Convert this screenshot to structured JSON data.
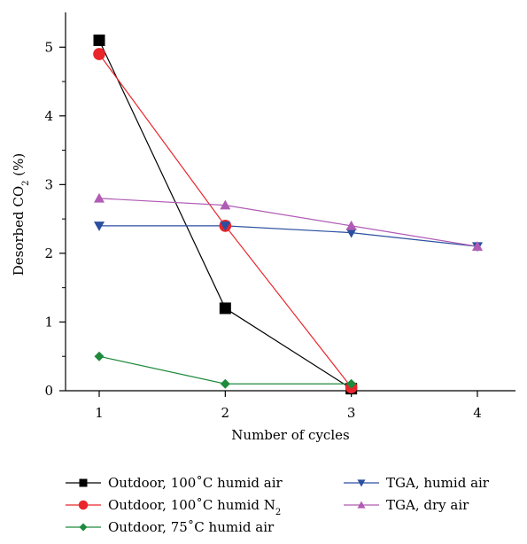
{
  "chart_data": {
    "type": "line",
    "xlabel": "Number of cycles",
    "ylabel": "Desorbed CO₂ (%)",
    "ylabel_main": "Desorbed CO",
    "ylabel_sub": "2",
    "ylabel_tail": " (%)",
    "xlim": [
      0.75,
      4.5
    ],
    "ylim": [
      0,
      5.45
    ],
    "xticks": [
      "1",
      "2",
      "3",
      "4"
    ],
    "yticks": [
      "0",
      "1",
      "2",
      "3",
      "4",
      "5"
    ],
    "grid": false,
    "legend_position": "bottom",
    "series": [
      {
        "name": "Outdoor, 100˚C humid air",
        "name_main": "Outdoor, 100˚C humid air",
        "name_sub": "",
        "color": "#000000",
        "marker": "square",
        "x": [
          1,
          2,
          3
        ],
        "y": [
          5.1,
          1.2,
          0.03
        ]
      },
      {
        "name": "Outdoor, 100˚C humid N₂",
        "name_main": "Outdoor, 100˚C humid N",
        "name_sub": "2",
        "color": "#e8262b",
        "marker": "circle",
        "x": [
          1,
          2,
          3
        ],
        "y": [
          4.9,
          2.4,
          0.05
        ]
      },
      {
        "name": "Outdoor, 75˚C humid air",
        "name_main": "Outdoor, 75˚C humid air",
        "name_sub": "",
        "color": "#1e8a3c",
        "marker": "diamond",
        "x": [
          1,
          2,
          3
        ],
        "y": [
          0.5,
          0.1,
          0.1
        ]
      },
      {
        "name": "TGA, humid air",
        "name_main": "TGA, humid air",
        "name_sub": "",
        "color": "#2b4fa0",
        "marker": "triangle-down",
        "x": [
          1,
          2,
          3,
          4
        ],
        "y": [
          2.4,
          2.4,
          2.3,
          2.1
        ]
      },
      {
        "name": "TGA, dry air",
        "name_main": "TGA, dry air",
        "name_sub": "",
        "color": "#b05cb5",
        "marker": "triangle-up",
        "x": [
          1,
          2,
          3,
          4
        ],
        "y": [
          2.8,
          2.7,
          2.4,
          2.1
        ]
      }
    ]
  }
}
